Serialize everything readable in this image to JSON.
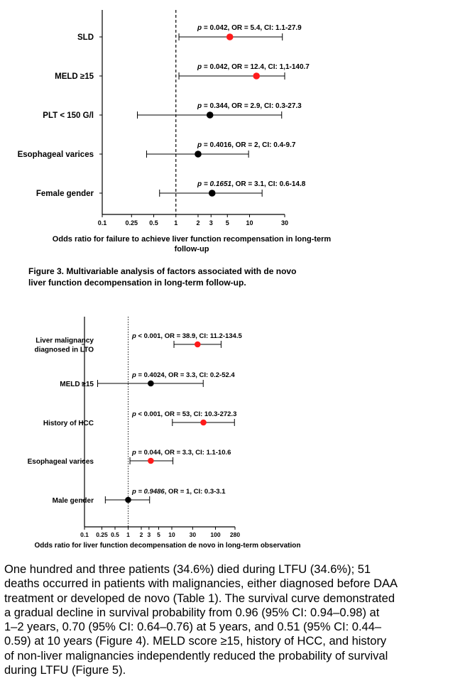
{
  "chart_data": [
    {
      "type": "forest",
      "xscale": "log",
      "xlim": [
        0.1,
        30
      ],
      "xticks": [
        "0.1",
        "0.25",
        "0.5",
        "1",
        "2",
        "3",
        "5",
        "10",
        "30"
      ],
      "reference_line": 1,
      "xlabel_lines": [
        "Odds ratio for failure to achieve liver function recompensation in long-term",
        "follow-up"
      ],
      "rows": [
        {
          "label": "SLD",
          "or": 5.4,
          "ci": [
            1.1,
            27.9
          ],
          "significant": true,
          "p_label": "p",
          "p_value": " = 0.042",
          "p_italic": false,
          "stats": ", OR = 5.4, CI: 1.1-27.9"
        },
        {
          "label": "MELD ≥15",
          "or": 12.4,
          "ci": [
            1.1,
            140.7
          ],
          "significant": true,
          "p_label": "p",
          "p_value": " = 0.042",
          "p_italic": false,
          "stats": ", OR = 12.4, CI: 1,1-140.7"
        },
        {
          "label": "PLT < 150 G/l",
          "or": 2.9,
          "ci": [
            0.3,
            27.3
          ],
          "significant": false,
          "p_label": "p",
          "p_value": " = 0.344",
          "p_italic": false,
          "stats": ",  OR = 2.9, CI: 0.3-27.3"
        },
        {
          "label": "Esophageal varices",
          "or": 2,
          "ci": [
            0.4,
            9.7
          ],
          "significant": false,
          "p_label": "p",
          "p_value": " = 0.4016",
          "p_italic": false,
          "stats": ", OR = 2, CI: 0.4-9.7"
        },
        {
          "label": "Female gender",
          "or": 3.1,
          "ci": [
            0.6,
            14.8
          ],
          "significant": false,
          "p_label": "p",
          "p_value": " = 0.1651",
          "p_italic": true,
          "stats": ", OR = 3.1, CI: 0.6-14.8"
        }
      ]
    },
    {
      "type": "forest",
      "xscale": "log",
      "xlim": [
        0.1,
        280
      ],
      "xticks": [
        "0.1",
        "0.25",
        "0.5",
        "1",
        "2",
        "3",
        "5",
        "10",
        "30",
        "100",
        "280"
      ],
      "reference_line": 1,
      "xlabel_lines": [
        "Odds ratio for liver function decompensation de novo in long-term observation"
      ],
      "rows": [
        {
          "label_lines": [
            "Liver malignancy",
            "diagnosed in LTO"
          ],
          "or": 38.9,
          "ci": [
            11.2,
            134.5
          ],
          "significant": true,
          "p_label": "p",
          "p_value": " < 0.001",
          "p_italic": false,
          "stats": ", OR = 38.9, CI: 11.2-134.5"
        },
        {
          "label_lines": [
            "MELD ≥15"
          ],
          "or": 3.3,
          "ci": [
            0.2,
            52.4
          ],
          "significant": false,
          "p_label": "p",
          "p_value": " = 0.4024",
          "p_italic": false,
          "stats": ", OR = 3.3, CI: 0.2-52.4"
        },
        {
          "label_lines": [
            "History of HCC"
          ],
          "or": 53,
          "ci": [
            10.3,
            272.3
          ],
          "significant": true,
          "p_label": "p",
          "p_value": " < 0.001",
          "p_italic": false,
          "stats": ", OR = 53, CI: 10.3-272.3"
        },
        {
          "label_lines": [
            "Esophageal varices"
          ],
          "or": 3.3,
          "ci": [
            1.1,
            10.6
          ],
          "significant": true,
          "p_label": "p",
          "p_value": " = 0.044",
          "p_italic": false,
          "stats": ", OR = 3.3, CI: 1.1-10.6"
        },
        {
          "label_lines": [
            "Male gender"
          ],
          "or": 1,
          "ci": [
            0.3,
            3.1
          ],
          "significant": false,
          "p_label": "p",
          "p_value": " = 0.9486",
          "p_italic": true,
          "stats": ", OR = 1, CI: 0.3-3.1"
        }
      ]
    }
  ],
  "colors": {
    "significant": "#ff1a1a",
    "non_significant": "#000000",
    "axis": "#000000"
  },
  "figure_caption_lines": [
    "Figure 3. Multivariable analysis of factors associated with de novo",
    "liver function decompensation in long-term follow-up."
  ],
  "paragraph_lines": [
    "One hundred and three patients (34.6%) died during LTFU (34.6%); 51",
    "deaths occurred in patients with malignancies, either diagnosed before DAA",
    "treatment or developed de novo (Table 1). The survival curve demonstrated",
    "a gradual decline in survival probability from 0.96 (95% CI: 0.94–0.98) at",
    "1–2 years, 0.70 (95% CI: 0.64–0.76) at 5 years, and 0.51 (95% CI: 0.44–",
    "0.59) at 10 years (Figure 4). MELD score ≥15, history of HCC, and history",
    "of non-liver malignancies independently reduced the probability of survival",
    "during LTFU (Figure 5)."
  ]
}
